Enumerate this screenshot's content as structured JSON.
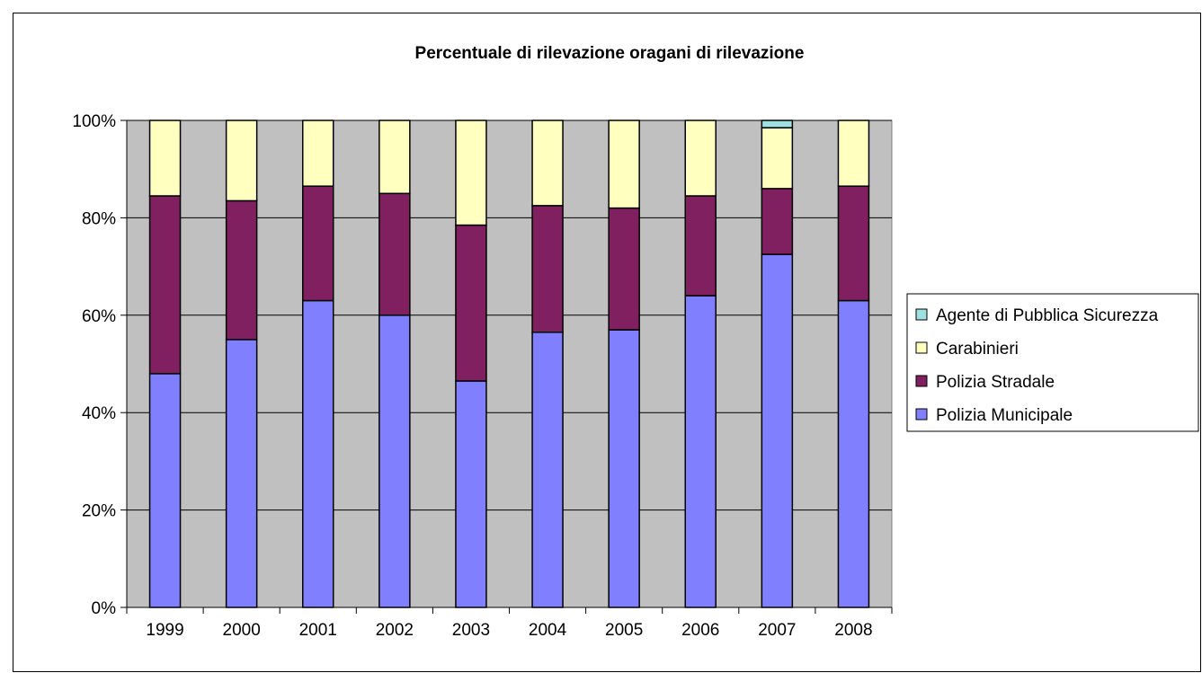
{
  "chart_data": {
    "type": "bar",
    "stacked": true,
    "percent": true,
    "title": "Percentuale di rilevazione oragani di rilevazione",
    "xlabel": "",
    "ylabel": "",
    "categories": [
      "1999",
      "2000",
      "2001",
      "2002",
      "2003",
      "2004",
      "2005",
      "2006",
      "2007",
      "2008"
    ],
    "y_ticks": [
      "0%",
      "20%",
      "40%",
      "60%",
      "80%",
      "100%"
    ],
    "ylim": [
      0,
      100
    ],
    "grid": true,
    "legend_position": "right",
    "series": [
      {
        "name": "Polizia Municipale",
        "color": "#8080ff",
        "values": [
          48,
          55,
          63,
          60,
          46.5,
          56.5,
          57,
          64,
          72.5,
          63
        ]
      },
      {
        "name": "Polizia Stradale",
        "color": "#802060",
        "values": [
          36.5,
          28.5,
          23.5,
          25,
          32,
          26,
          25,
          20.5,
          13.5,
          23.5
        ]
      },
      {
        "name": "Carabinieri",
        "color": "#ffffc0",
        "values": [
          15.5,
          16.5,
          13.5,
          15,
          21.5,
          17.5,
          18,
          15.5,
          12.5,
          13.5
        ]
      },
      {
        "name": "Agente di Pubblica Sicurezza",
        "color": "#a0e0e0",
        "values": [
          0,
          0,
          0,
          0,
          0,
          0,
          0,
          0,
          1.5,
          0
        ]
      }
    ],
    "legend_order": [
      "Agente di Pubblica Sicurezza",
      "Carabinieri",
      "Polizia Stradale",
      "Polizia Municipale"
    ],
    "plot_background": "#c0c0c0"
  }
}
